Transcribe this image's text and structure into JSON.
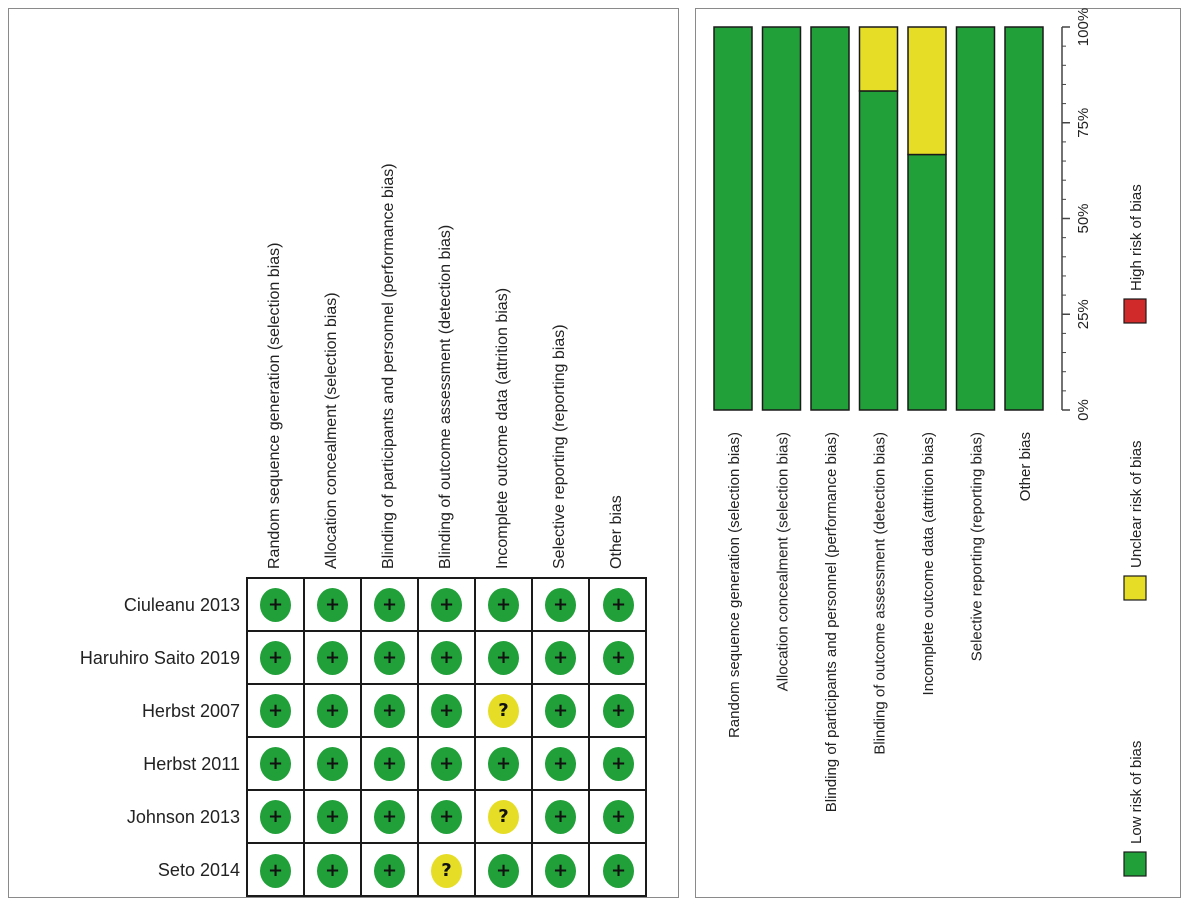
{
  "chart_data": [
    {
      "type": "table",
      "columns": [
        "Random sequence generation (selection bias)",
        "Allocation concealment (selection bias)",
        "Blinding of participants and personnel (performance bias)",
        "Blinding of outcome assessment (detection bias)",
        "Incomplete outcome data (attrition bias)",
        "Selective reporting (reporting bias)",
        "Other bias"
      ],
      "rows": [
        {
          "study": "Ciuleanu 2013",
          "ratings": [
            "low",
            "low",
            "low",
            "low",
            "low",
            "low",
            "low"
          ]
        },
        {
          "study": "Haruhiro Saito 2019",
          "ratings": [
            "low",
            "low",
            "low",
            "low",
            "low",
            "low",
            "low"
          ]
        },
        {
          "study": "Herbst 2007",
          "ratings": [
            "low",
            "low",
            "low",
            "low",
            "unclear",
            "low",
            "low"
          ]
        },
        {
          "study": "Herbst 2011",
          "ratings": [
            "low",
            "low",
            "low",
            "low",
            "low",
            "low",
            "low"
          ]
        },
        {
          "study": "Johnson 2013",
          "ratings": [
            "low",
            "low",
            "low",
            "low",
            "unclear",
            "low",
            "low"
          ]
        },
        {
          "study": "Seto 2014",
          "ratings": [
            "low",
            "low",
            "low",
            "unclear",
            "low",
            "low",
            "low"
          ]
        }
      ],
      "symbols": {
        "low": "+",
        "unclear": "?",
        "high": "−"
      }
    },
    {
      "type": "bar",
      "orientation": "stacked-100",
      "categories": [
        "Random sequence generation (selection bias)",
        "Allocation concealment (selection bias)",
        "Blinding of participants and personnel (performance bias)",
        "Blinding of outcome assessment (detection bias)",
        "Incomplete outcome data (attrition bias)",
        "Selective reporting (reporting bias)",
        "Other bias"
      ],
      "series": [
        {
          "name": "Low risk of bias",
          "color": "#21a03a",
          "values": [
            100,
            100,
            100,
            83.3,
            66.7,
            100,
            100
          ]
        },
        {
          "name": "Unclear risk of bias",
          "color": "#e6de26",
          "values": [
            0,
            0,
            0,
            16.7,
            33.3,
            0,
            0
          ]
        },
        {
          "name": "High risk of bias",
          "color": "#d12a2a",
          "values": [
            0,
            0,
            0,
            0,
            0,
            0,
            0
          ]
        }
      ],
      "ylim": [
        0,
        100
      ],
      "tick_labels": [
        "0%",
        "25%",
        "50%",
        "75%",
        "100%"
      ],
      "tick_values": [
        0,
        25,
        50,
        75,
        100
      ],
      "grid": false,
      "legend_position": "right"
    }
  ]
}
